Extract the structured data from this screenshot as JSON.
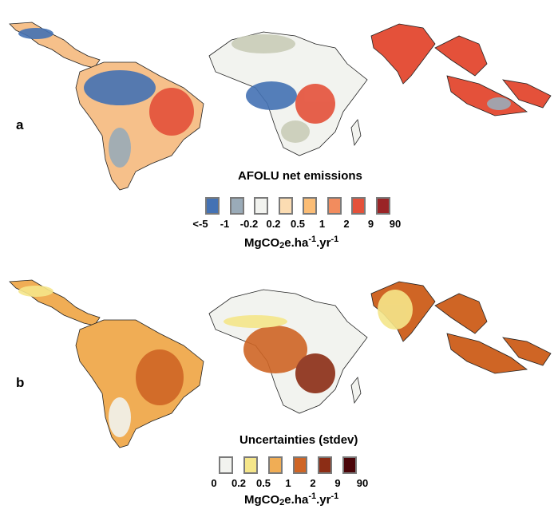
{
  "panels": [
    {
      "label": "a"
    },
    {
      "label": "b"
    }
  ],
  "legend_a": {
    "title": "AFOLU net emissions",
    "colors": [
      "#4472b4",
      "#9aabb8",
      "#f2f3ef",
      "#fbdcb2",
      "#fbbd76",
      "#f28c5e",
      "#e4513a",
      "#9a2426"
    ],
    "ticks": [
      "<-5",
      "-1",
      "-0.2",
      "0.2",
      "0.5",
      "1",
      "2",
      "9",
      "90"
    ],
    "unit": {
      "base": "MgCO",
      "sub": "2",
      "mid": "e.ha",
      "sup1": "-1",
      "mid2": ".yr",
      "sup2": "-1"
    }
  },
  "legend_b": {
    "title": "Uncertainties (stdev)",
    "colors": [
      "#f2f3ef",
      "#f5e68a",
      "#f0ad55",
      "#cf6525",
      "#8c2d15",
      "#4a0408"
    ],
    "ticks": [
      "0",
      "0.2",
      "0.5",
      "1",
      "2",
      "9",
      "90"
    ],
    "unit": {
      "base": "MgCO",
      "sub": "2",
      "mid": "e.ha",
      "sup1": "-1",
      "mid2": ".yr",
      "sup2": "-1"
    }
  }
}
